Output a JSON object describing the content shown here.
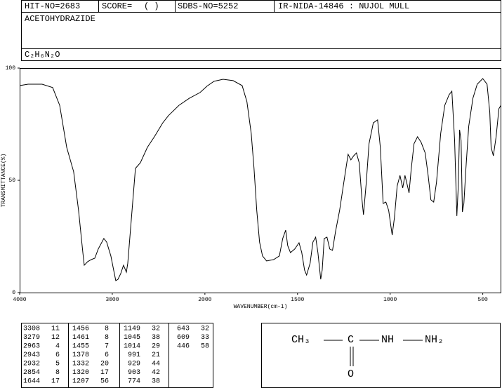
{
  "header": {
    "hit_no": "HIT-NO=2683",
    "score_label": "SCORE=",
    "score_value": "(   )",
    "sdbs_no": "SDBS-NO=5252",
    "method": "IR-NIDA-14846 : NUJOL MULL"
  },
  "compound": "ACETOHYDRAZIDE",
  "formula": "C₂H₆N₂O",
  "chart_data": {
    "type": "line",
    "xlabel": "WAVENUMBER(cm-1)",
    "ylabel": "TRANSMITTANCE(%)",
    "xlim": [
      4000,
      400
    ],
    "xscale_break": 2000,
    "xticks": [
      4000,
      3000,
      2000,
      1500,
      1000,
      500
    ],
    "ylim": [
      0,
      100
    ],
    "yticks": [
      0,
      50,
      100
    ],
    "color": "#000000",
    "x": [
      4000,
      3909,
      3758,
      3644,
      3568,
      3492,
      3417,
      3364,
      3318,
      3303,
      3265,
      3227,
      3189,
      3152,
      3091,
      3061,
      3015,
      2985,
      2962,
      2939,
      2909,
      2879,
      2848,
      2833,
      2750,
      2697,
      2621,
      2545,
      2455,
      2394,
      2280,
      2167,
      2053,
      1989,
      1951,
      1902,
      1848,
      1799,
      1773,
      1750,
      1735,
      1720,
      1705,
      1689,
      1667,
      1629,
      1598,
      1580,
      1564,
      1553,
      1538,
      1515,
      1492,
      1477,
      1462,
      1451,
      1432,
      1417,
      1402,
      1390,
      1375,
      1367,
      1356,
      1341,
      1326,
      1311,
      1295,
      1273,
      1250,
      1227,
      1212,
      1197,
      1182,
      1167,
      1152,
      1144,
      1129,
      1114,
      1091,
      1068,
      1053,
      1038,
      1023,
      1008,
      996,
      989,
      977,
      962,
      947,
      932,
      920,
      909,
      898,
      886,
      871,
      852,
      833,
      811,
      795,
      780,
      765,
      750,
      727,
      705,
      682,
      667,
      652,
      640,
      633,
      625,
      617,
      610,
      602,
      591,
      576,
      553,
      530,
      500,
      477,
      462,
      455,
      443,
      428,
      413,
      402
    ],
    "values": [
      92.2,
      92.8,
      92.8,
      91.3,
      83.4,
      64.7,
      53.8,
      36.6,
      17.8,
      12.2,
      13.8,
      14.7,
      15.3,
      19.4,
      24.1,
      22.5,
      16.3,
      10.0,
      5.3,
      5.9,
      8.4,
      12.2,
      9.1,
      13.1,
      55.3,
      57.8,
      64.7,
      69.4,
      75.6,
      78.8,
      83.4,
      86.6,
      89.1,
      91.9,
      94.1,
      95.0,
      94.4,
      92.2,
      85.0,
      70.9,
      55.3,
      36.6,
      22.5,
      16.3,
      14.1,
      14.7,
      16.3,
      24.1,
      27.8,
      20.9,
      17.8,
      19.4,
      22.2,
      17.8,
      10.0,
      7.8,
      13.1,
      22.5,
      24.7,
      17.8,
      5.9,
      10.0,
      24.1,
      24.7,
      19.4,
      18.8,
      27.2,
      36.6,
      49.1,
      61.6,
      59.1,
      60.9,
      62.2,
      57.8,
      41.3,
      34.7,
      49.1,
      66.3,
      75.6,
      76.9,
      64.7,
      39.7,
      40.3,
      36.6,
      29.7,
      25.6,
      33.4,
      47.5,
      52.2,
      46.6,
      52.2,
      48.4,
      44.4,
      55.3,
      66.3,
      69.4,
      66.9,
      62.2,
      52.2,
      41.3,
      40.3,
      49.1,
      70.9,
      83.4,
      88.1,
      89.7,
      67.8,
      34.1,
      45.9,
      72.5,
      67.8,
      35.9,
      39.7,
      55.3,
      74.1,
      86.6,
      92.8,
      95.3,
      92.8,
      80.3,
      64.7,
      60.9,
      69.4,
      81.9,
      83.4
    ]
  },
  "peak_table": [
    [
      [
        3308,
        11
      ],
      [
        3279,
        12
      ],
      [
        2963,
        4
      ],
      [
        2943,
        6
      ],
      [
        2932,
        5
      ],
      [
        2854,
        8
      ],
      [
        1644,
        17
      ]
    ],
    [
      [
        1456,
        8
      ],
      [
        1461,
        8
      ],
      [
        1455,
        7
      ],
      [
        1378,
        6
      ],
      [
        1332,
        20
      ],
      [
        1320,
        17
      ],
      [
        1207,
        56
      ]
    ],
    [
      [
        1149,
        32
      ],
      [
        1045,
        38
      ],
      [
        1014,
        29
      ],
      [
        991,
        21
      ],
      [
        929,
        44
      ],
      [
        903,
        42
      ],
      [
        774,
        38
      ]
    ],
    [
      [
        643,
        32
      ],
      [
        609,
        33
      ],
      [
        446,
        58
      ]
    ]
  ],
  "structure": {
    "group1": "CH₃",
    "carbon": "C",
    "group2": "NH",
    "group3": "NH₂",
    "oxygen": "O"
  }
}
